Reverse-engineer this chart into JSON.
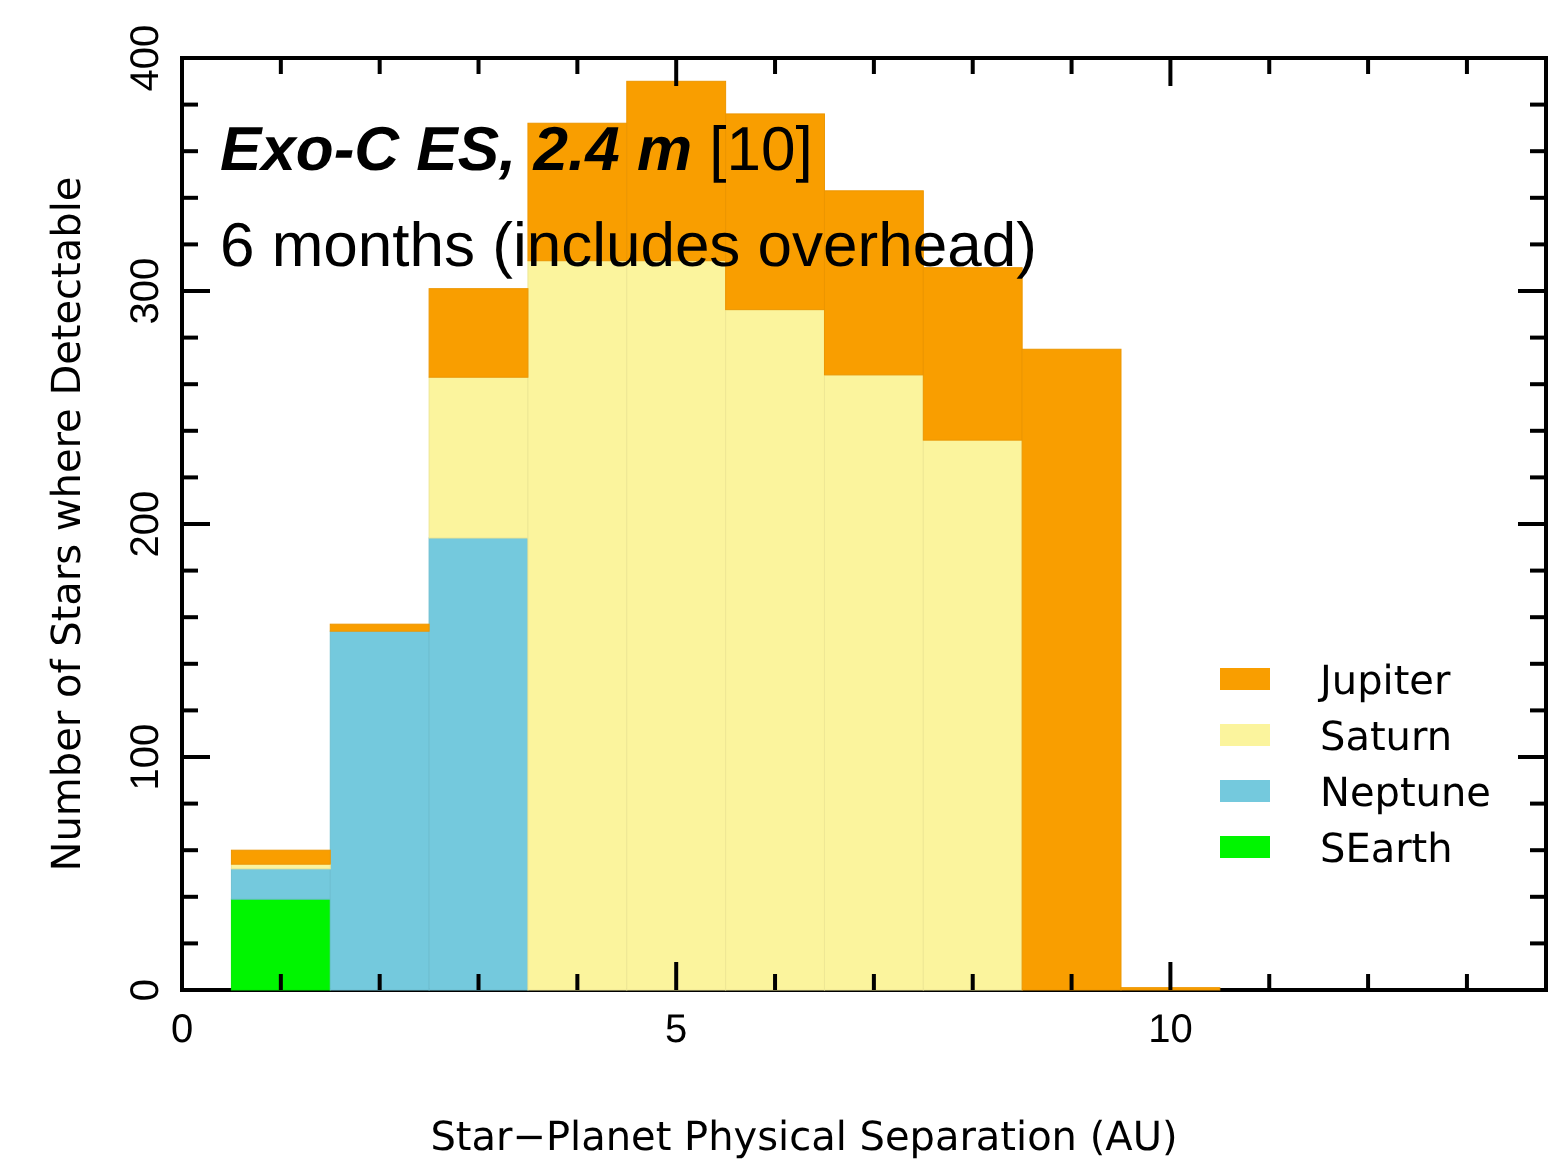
{
  "chart_data": {
    "type": "bar",
    "stacked": true,
    "xlabel": "Star−Planet Physical Separation (AU)",
    "ylabel": "Number of Stars where Detectable",
    "annotations": [
      "Exo-C ES, 2.4 m",
      "[10]",
      "6 months (includes overhead)"
    ],
    "x": [
      1,
      2,
      3,
      4,
      5,
      6,
      7,
      8,
      9,
      10
    ],
    "series": [
      {
        "name": "SEarth",
        "color": "#00f500",
        "values": [
          39,
          0,
          0,
          0,
          0,
          0,
          0,
          0,
          0,
          0
        ]
      },
      {
        "name": "Neptune",
        "color": "#74c9dd",
        "values": [
          13,
          154,
          194,
          0,
          0,
          0,
          0,
          0,
          0,
          0
        ]
      },
      {
        "name": "Saturn",
        "color": "#fbf49d",
        "values": [
          2,
          0,
          69,
          313,
          313,
          292,
          264,
          236,
          0,
          0
        ]
      },
      {
        "name": "Jupiter",
        "color": "#f99e00",
        "values": [
          6,
          3,
          38,
          59,
          77,
          84,
          79,
          74,
          275,
          1
        ]
      }
    ],
    "xlim": [
      0,
      13.8
    ],
    "xticks": [
      0,
      {
        "value": 1,
        "label": null
      },
      {
        "value": 2,
        "label": null
      },
      {
        "value": 3,
        "label": null
      },
      {
        "value": 4,
        "label": null
      },
      5,
      {
        "value": 6,
        "label": null
      },
      {
        "value": 7,
        "label": null
      },
      {
        "value": 8,
        "label": null
      },
      {
        "value": 9,
        "label": null
      },
      10,
      {
        "value": 11,
        "label": null
      },
      {
        "value": 12,
        "label": null
      },
      {
        "value": 13,
        "label": null
      }
    ],
    "ylim": [
      0,
      400
    ],
    "yticks": [
      0,
      {
        "value": 20,
        "label": null
      },
      {
        "value": 40,
        "label": null
      },
      {
        "value": 60,
        "label": null
      },
      {
        "value": 80,
        "label": null
      },
      100,
      {
        "value": 120,
        "label": null
      },
      {
        "value": 140,
        "label": null
      },
      {
        "value": 160,
        "label": null
      },
      {
        "value": 180,
        "label": null
      },
      200,
      {
        "value": 220,
        "label": null
      },
      {
        "value": 240,
        "label": null
      },
      {
        "value": 260,
        "label": null
      },
      {
        "value": 280,
        "label": null
      },
      300,
      {
        "value": 320,
        "label": null
      },
      {
        "value": 340,
        "label": null
      },
      {
        "value": 360,
        "label": null
      },
      {
        "value": 380,
        "label": null
      },
      400
    ],
    "legend": "right",
    "grid": false
  }
}
